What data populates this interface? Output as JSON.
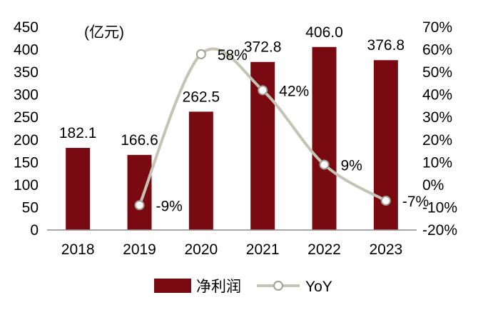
{
  "chart_data": {
    "type": "bar+line",
    "unit_label": "(亿元)",
    "categories": [
      "2018",
      "2019",
      "2020",
      "2021",
      "2022",
      "2023"
    ],
    "series": [
      {
        "name": "净利润",
        "type": "bar",
        "axis": "left",
        "color": "#7a0a12",
        "values": [
          182.1,
          166.6,
          262.5,
          372.8,
          406.0,
          376.8
        ],
        "labels": [
          "182.1",
          "166.6",
          "262.5",
          "372.8",
          "406.0",
          "376.8"
        ]
      },
      {
        "name": "YoY",
        "type": "line",
        "axis": "right",
        "color": "#c4c4b5",
        "values": [
          null,
          -9,
          58,
          42,
          9,
          -7
        ],
        "labels": [
          "",
          "-9%",
          "58%",
          "42%",
          "9%",
          "-7%"
        ]
      }
    ],
    "left_axis": {
      "min": 0,
      "max": 450,
      "ticks": [
        0,
        50,
        100,
        150,
        200,
        250,
        300,
        350,
        400,
        450
      ],
      "tick_labels": [
        "0",
        "50",
        "100",
        "150",
        "200",
        "250",
        "300",
        "350",
        "400",
        "450"
      ]
    },
    "right_axis": {
      "min": -20,
      "max": 70,
      "ticks": [
        -20,
        -10,
        0,
        10,
        20,
        30,
        40,
        50,
        60,
        70
      ],
      "tick_labels": [
        "-20%",
        "-10%",
        "0%",
        "10%",
        "20%",
        "30%",
        "40%",
        "50%",
        "60%",
        "70%"
      ]
    },
    "grid": false,
    "legend_position": "bottom"
  }
}
